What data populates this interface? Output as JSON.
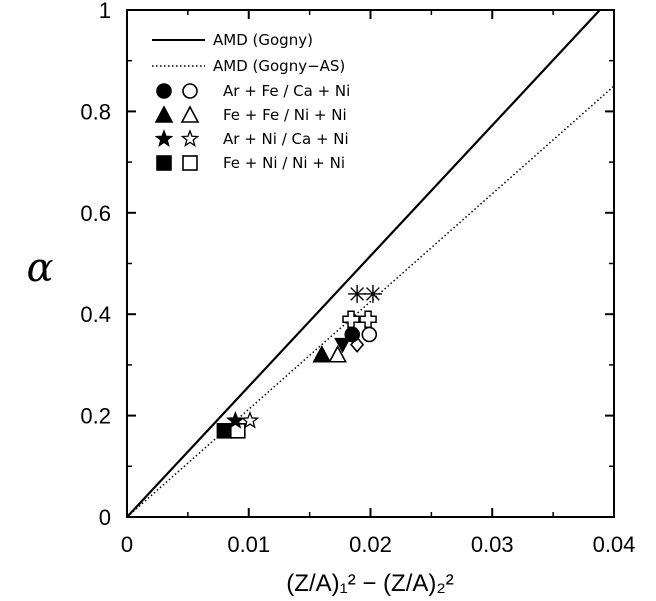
{
  "chart_data": {
    "type": "scatter",
    "title": "",
    "xlabel": "(Z/A)₁² − (Z/A)₂²",
    "ylabel": "α",
    "xlim": [
      0,
      0.04
    ],
    "ylim": [
      0,
      1
    ],
    "x_ticks": [
      0,
      0.01,
      0.02,
      0.03,
      0.04
    ],
    "x_tick_labels": [
      "0",
      "0.01",
      "0.02",
      "0.03",
      "0.04"
    ],
    "y_ticks": [
      0,
      0.2,
      0.4,
      0.6,
      0.8,
      1
    ],
    "y_tick_labels": [
      "0",
      "0.2",
      "0.4",
      "0.6",
      "0.8",
      "1"
    ],
    "grid": false,
    "legend_position": "top-left",
    "lines": [
      {
        "name": "AMD (Gogny)",
        "style": "solid",
        "x": [
          0,
          0.04
        ],
        "y": [
          0,
          1.03
        ]
      },
      {
        "name": "AMD (Gogny−AS)",
        "style": "dotted",
        "x": [
          0,
          0.04
        ],
        "y": [
          0,
          0.85
        ]
      }
    ],
    "legend_markers": [
      {
        "label": "Ar + Fe / Ca + Ni",
        "filled": "circle",
        "open": "circle"
      },
      {
        "label": "Fe + Fe / Ni + Ni",
        "filled": "triangle",
        "open": "triangle"
      },
      {
        "label": "Ar + Ni / Ca + Ni",
        "filled": "star",
        "open": "star"
      },
      {
        "label": "Fe + Ni / Ni + Ni",
        "filled": "square",
        "open": "square"
      }
    ],
    "points": [
      {
        "marker": "square",
        "filled": true,
        "x": 0.008,
        "y": 0.17
      },
      {
        "marker": "square",
        "filled": false,
        "x": 0.0091,
        "y": 0.17
      },
      {
        "marker": "star",
        "filled": true,
        "x": 0.0089,
        "y": 0.19
      },
      {
        "marker": "star",
        "filled": false,
        "x": 0.0101,
        "y": 0.19
      },
      {
        "marker": "triangle",
        "filled": true,
        "x": 0.016,
        "y": 0.32
      },
      {
        "marker": "triangle",
        "filled": false,
        "x": 0.0173,
        "y": 0.32
      },
      {
        "marker": "triangle-down",
        "filled": true,
        "x": 0.0177,
        "y": 0.34
      },
      {
        "marker": "diamond",
        "filled": false,
        "x": 0.0189,
        "y": 0.34
      },
      {
        "marker": "circle",
        "filled": true,
        "x": 0.0185,
        "y": 0.36
      },
      {
        "marker": "circle",
        "filled": false,
        "x": 0.0199,
        "y": 0.36
      },
      {
        "marker": "cross",
        "filled": false,
        "x": 0.0184,
        "y": 0.39
      },
      {
        "marker": "cross",
        "filled": false,
        "x": 0.0198,
        "y": 0.39
      },
      {
        "marker": "asterisk",
        "filled": false,
        "x": 0.0189,
        "y": 0.44
      },
      {
        "marker": "asterisk",
        "filled": false,
        "x": 0.0202,
        "y": 0.44
      }
    ]
  }
}
